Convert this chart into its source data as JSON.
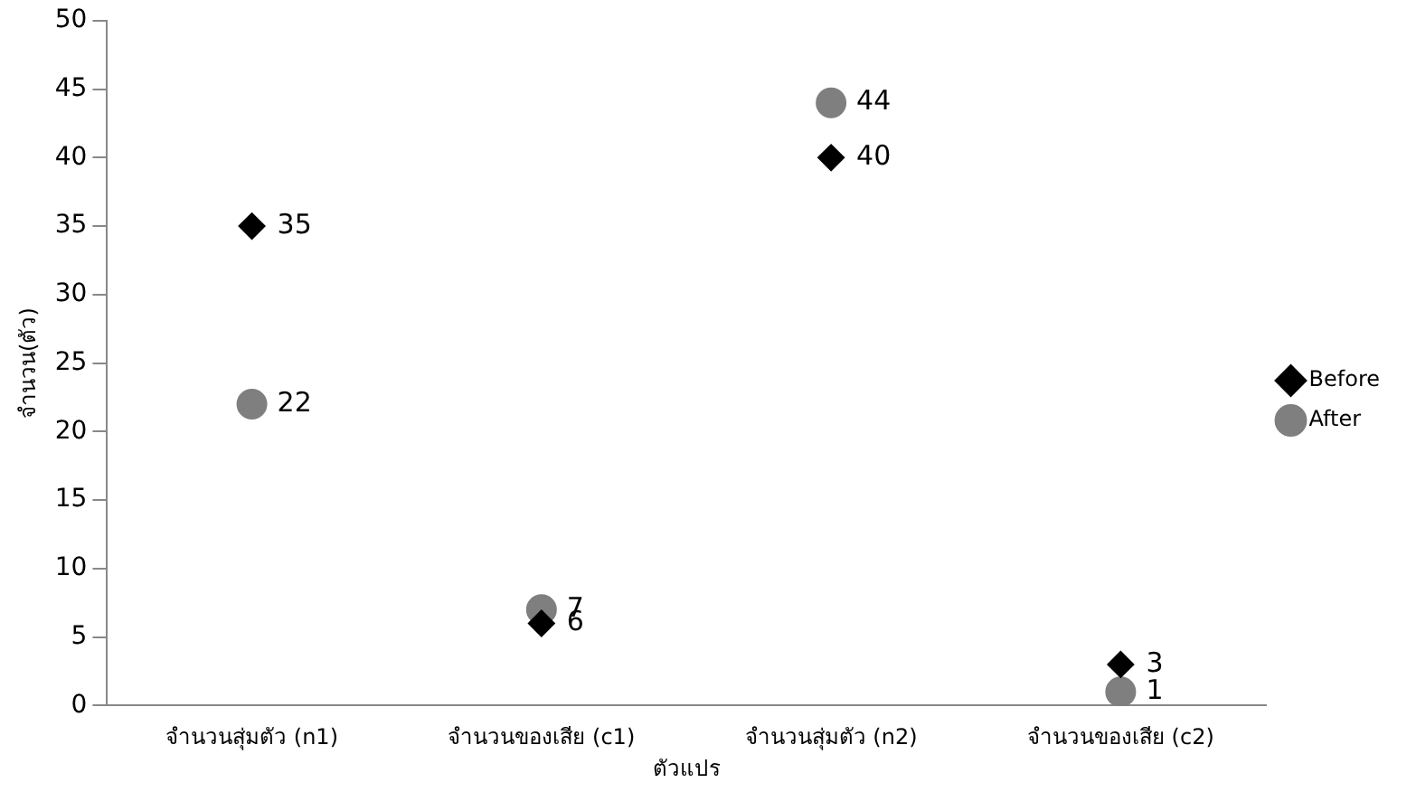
{
  "chart_data": {
    "type": "scatter",
    "xlabel": "ตัวแปร",
    "ylabel": "จำนวน(ตัว)",
    "categories": [
      "จำนวนสุ่มตัว (n1)",
      "จำนวนของเสีย (c1)",
      "จำนวนสุ่มตัว (n2)",
      "จำนวนของเสีย (c2)"
    ],
    "series": [
      {
        "name": "Before",
        "color": "#000000",
        "marker": "diamond",
        "values": [
          35,
          6,
          40,
          3
        ]
      },
      {
        "name": "After",
        "color": "#7f7f7f",
        "marker": "circle",
        "values": [
          22,
          7,
          44,
          1
        ]
      }
    ],
    "ylim": [
      0,
      50
    ],
    "yticks": [
      0,
      5,
      10,
      15,
      20,
      25,
      30,
      35,
      40,
      45,
      50
    ],
    "grid": false,
    "legend": "right",
    "data_labels": true
  }
}
